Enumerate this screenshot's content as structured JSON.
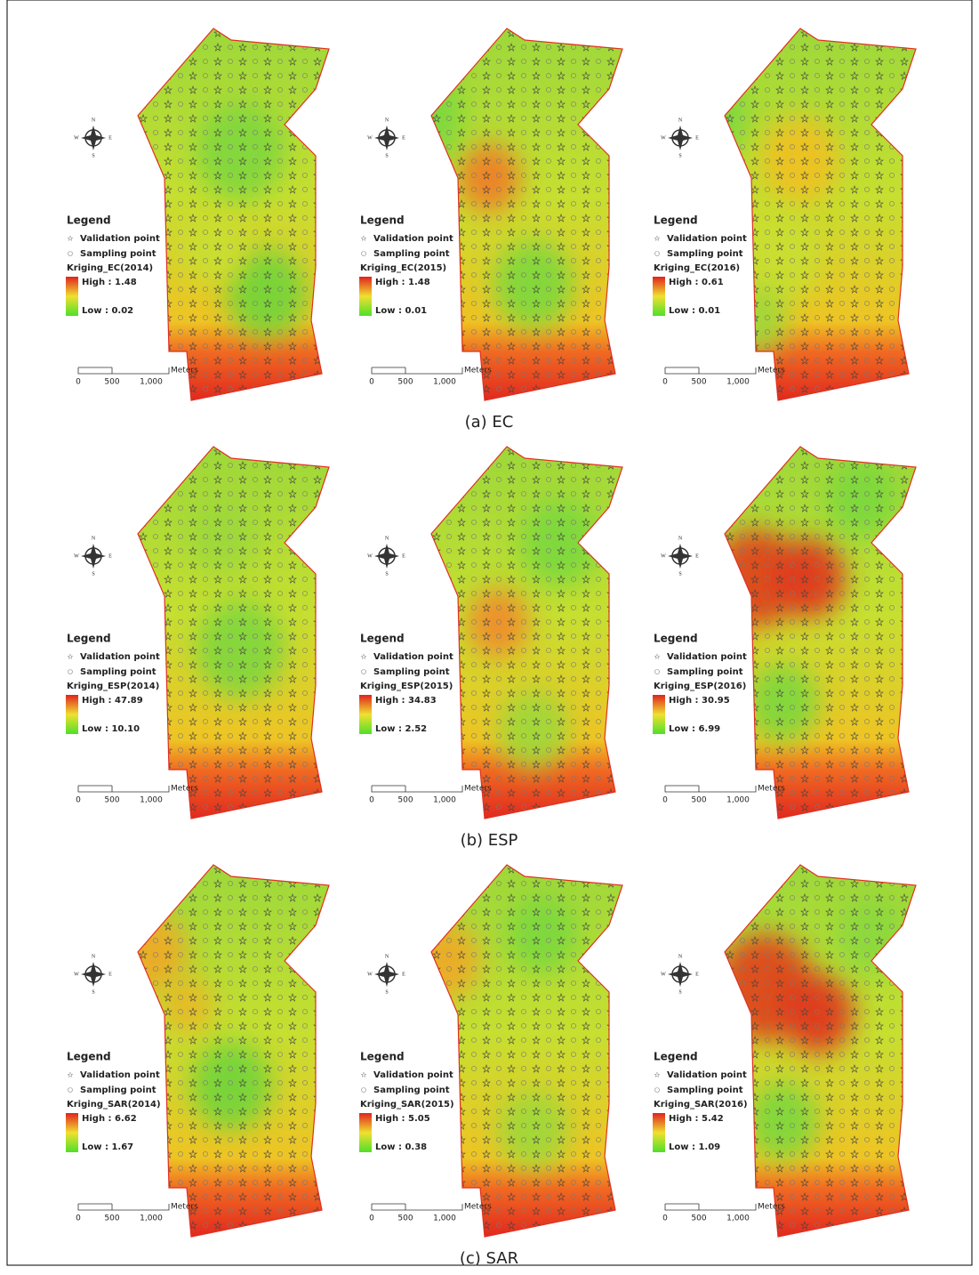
{
  "rows": [
    {
      "caption": "(a)  EC",
      "panels": [
        {
          "layer": "Kriging_EC(2014)",
          "high": "High : 1.48",
          "low": "Low : 0.02"
        },
        {
          "layer": "Kriging_EC(2015)",
          "high": "High : 1.48",
          "low": "Low : 0.01"
        },
        {
          "layer": "Kriging_EC(2016)",
          "high": "High : 0.61",
          "low": "Low : 0.01"
        }
      ]
    },
    {
      "caption": "(b)  ESP",
      "panels": [
        {
          "layer": "Kriging_ESP(2014)",
          "high": "High : 47.89",
          "low": "Low : 10.10"
        },
        {
          "layer": "Kriging_ESP(2015)",
          "high": "High : 34.83",
          "low": "Low : 2.52"
        },
        {
          "layer": "Kriging_ESP(2016)",
          "high": "High : 30.95",
          "low": "Low : 6.99"
        }
      ]
    },
    {
      "caption": "(c)  SAR",
      "panels": [
        {
          "layer": "Kriging_SAR(2014)",
          "high": "High : 6.62",
          "low": "Low : 1.67"
        },
        {
          "layer": "Kriging_SAR(2015)",
          "high": "High : 5.05",
          "low": "Low : 0.38"
        },
        {
          "layer": "Kriging_SAR(2016)",
          "high": "High : 5.42",
          "low": "Low : 1.09"
        }
      ]
    }
  ],
  "legend": {
    "title": "Legend",
    "validation": "Validation point",
    "sampling": "Sampling point"
  },
  "scale": {
    "unit": "Meters",
    "ticks": [
      "0",
      "500",
      "1,000"
    ]
  },
  "compass": {
    "n": "N",
    "s": "S",
    "w": "W",
    "e": "E"
  }
}
